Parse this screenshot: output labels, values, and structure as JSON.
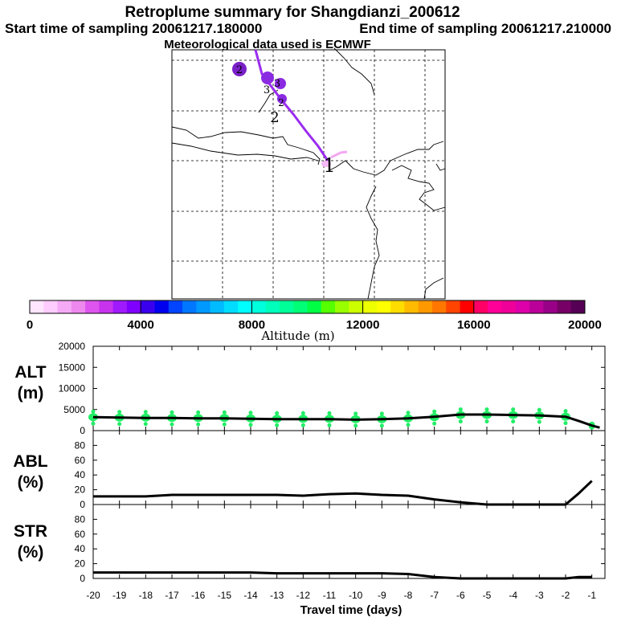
{
  "header": {
    "title": "Retroplume summary for Shangdianzi_200612",
    "start": "Start time of sampling 20061217.180000",
    "end": "End time of sampling 20061217.210000",
    "met": "Meteorological data used is ECMWF"
  },
  "map": {
    "trajectory_labels": [
      "1",
      "2",
      "3",
      "2"
    ],
    "bubble_labels": [
      "2",
      "3"
    ]
  },
  "colorbar": {
    "label": "Altitude (m)",
    "ticks": [
      "0",
      "4000",
      "8000",
      "12000",
      "16000",
      "20000"
    ],
    "colors": [
      "#ffe6ff",
      "#ffccff",
      "#f5aaf5",
      "#ee88ee",
      "#dd55ee",
      "#c833ee",
      "#a01aff",
      "#8000ff",
      "#3a00ee",
      "#0000ee",
      "#0044ff",
      "#0077ff",
      "#0099ff",
      "#00bbff",
      "#00ddff",
      "#00ffff",
      "#00ffdd",
      "#00ffbb",
      "#00ff99",
      "#00ff77",
      "#00ff44",
      "#55ff00",
      "#99ff00",
      "#ccff00",
      "#eeff00",
      "#ffff00",
      "#ffdd00",
      "#ffbb00",
      "#ff9900",
      "#ff7700",
      "#ff4400",
      "#ff0000",
      "#ff0066",
      "#ff0099",
      "#ee0099",
      "#dd00aa",
      "#bb0099",
      "#990088",
      "#770066",
      "#550055"
    ]
  },
  "chart_data": [
    {
      "type": "line",
      "id": "alt",
      "label": "ALT",
      "unit": "(m)",
      "ylim": [
        0,
        20000
      ],
      "yticks": [
        "0",
        "5000",
        "10000",
        "15000",
        "20000"
      ],
      "xlim": [
        -20,
        -0.5
      ],
      "x": [
        -20,
        -19,
        -18,
        -17,
        -16,
        -15,
        -14,
        -13,
        -12,
        -11,
        -10,
        -9,
        -8,
        -7,
        -6,
        -5,
        -4,
        -3,
        -2,
        -1.5,
        -1,
        -0.7
      ],
      "y": [
        3200,
        3100,
        3000,
        3000,
        2900,
        2900,
        2800,
        2700,
        2700,
        2700,
        2600,
        2700,
        2900,
        3300,
        3800,
        3800,
        3700,
        3600,
        3300,
        2300,
        1200,
        700
      ],
      "scatter_x": [
        -20,
        -19,
        -18,
        -17,
        -16,
        -15,
        -14,
        -13,
        -12,
        -11,
        -10,
        -9,
        -8,
        -7,
        -6,
        -5,
        -4,
        -3,
        -2,
        -1
      ],
      "scatter_y": [
        3200,
        3100,
        3100,
        3000,
        3000,
        3000,
        2900,
        2800,
        2800,
        2800,
        2700,
        2700,
        2900,
        3200,
        3700,
        3700,
        3700,
        3600,
        3300,
        1200
      ]
    },
    {
      "type": "line",
      "id": "abl",
      "label": "ABL",
      "unit": "(%)",
      "ylim": [
        0,
        100
      ],
      "yticks": [
        "0",
        "20",
        "40",
        "60",
        "80"
      ],
      "xlim": [
        -20,
        -0.5
      ],
      "x": [
        -20,
        -19,
        -18,
        -17,
        -16,
        -15,
        -14,
        -13,
        -12,
        -11,
        -10,
        -9,
        -8,
        -7,
        -6,
        -5,
        -4,
        -3,
        -2,
        -1.5,
        -1
      ],
      "y": [
        11,
        11,
        11,
        13,
        13,
        13,
        13,
        13,
        12,
        14,
        15,
        13,
        12,
        7,
        3,
        0,
        0,
        0,
        0,
        15,
        32
      ]
    },
    {
      "type": "line",
      "id": "str",
      "label": "STR",
      "unit": "(%)",
      "ylim": [
        0,
        100
      ],
      "yticks": [
        "0",
        "20",
        "40",
        "60",
        "80"
      ],
      "xlim": [
        -20,
        -0.5
      ],
      "x": [
        -20,
        -19,
        -18,
        -17,
        -16,
        -15,
        -14,
        -13,
        -12,
        -11,
        -10,
        -9,
        -8,
        -7,
        -6,
        -5,
        -4,
        -3,
        -2,
        -1.5,
        -1
      ],
      "y": [
        8,
        8,
        8,
        8,
        8,
        8,
        8,
        7,
        7,
        7,
        7,
        7,
        6,
        2,
        0,
        0,
        0,
        0,
        0,
        2,
        2
      ],
      "xticks": [
        "-20",
        "-19",
        "-18",
        "-17",
        "-16",
        "-15",
        "-14",
        "-13",
        "-12",
        "-11",
        "-10",
        "-9",
        "-8",
        "-7",
        "-6",
        "-5",
        "-4",
        "-3",
        "-2",
        "-1"
      ],
      "xlabel": "Travel time (days)"
    }
  ]
}
